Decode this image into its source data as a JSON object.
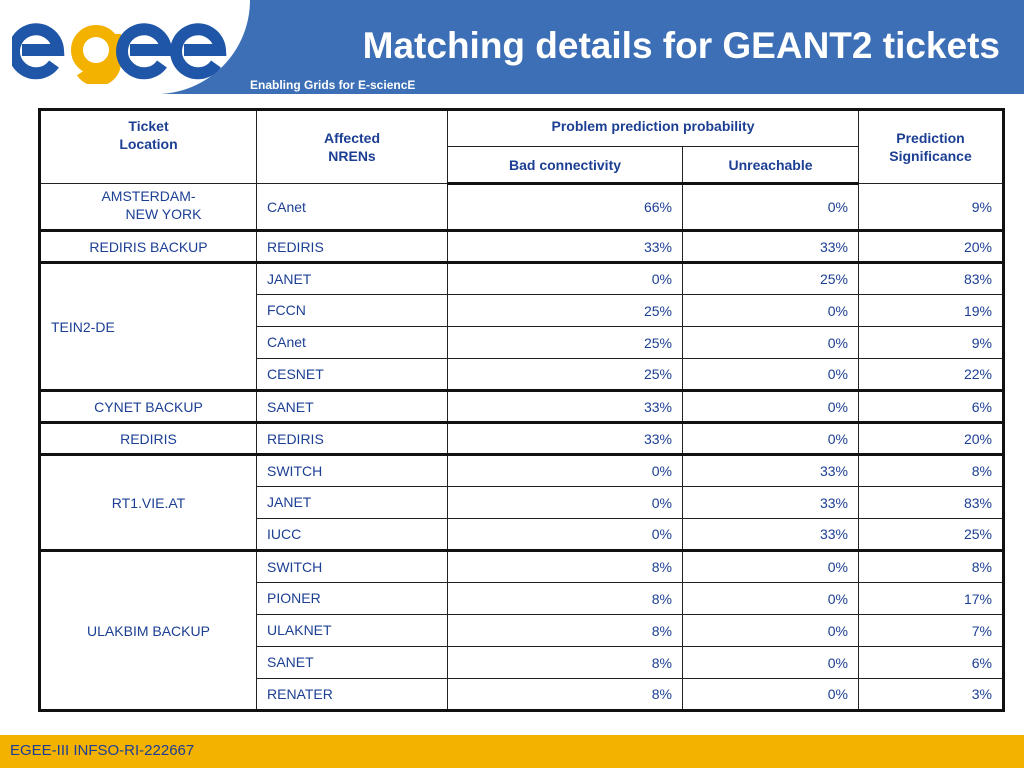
{
  "header": {
    "logo_text": "egee",
    "title": "Matching details for GEANT2 tickets",
    "tagline": "Enabling Grids for E-sciencE",
    "colors": {
      "band": "#3c6fb6",
      "logo_e": "#1f56a8",
      "logo_g": "#f3b100"
    }
  },
  "table": {
    "headers": {
      "ticket_location_1": "Ticket",
      "ticket_location_2": "Location",
      "affected_1": "Affected",
      "affected_2": "NRENs",
      "problem_prediction": "Problem prediction probability",
      "bad_connectivity": "Bad connectivity",
      "unreachable": "Unreachable",
      "significance_1": "Prediction",
      "significance_2": "Significance"
    },
    "groups": [
      {
        "location_line1": "AMSTERDAM-",
        "location_line2": "NEW YORK",
        "rows": [
          {
            "nren": "CAnet",
            "bad": "66%",
            "unreach": "0%",
            "sig": "9%"
          }
        ]
      },
      {
        "location": "REDIRIS BACKUP",
        "rows": [
          {
            "nren": "REDIRIS",
            "bad": "33%",
            "unreach": "33%",
            "sig": "20%"
          }
        ]
      },
      {
        "location": "TEIN2-DE",
        "rows": [
          {
            "nren": "JANET",
            "bad": "0%",
            "unreach": "25%",
            "sig": "83%"
          },
          {
            "nren": "FCCN",
            "bad": "25%",
            "unreach": "0%",
            "sig": "19%"
          },
          {
            "nren": "CAnet",
            "bad": "25%",
            "unreach": "0%",
            "sig": "9%"
          },
          {
            "nren": "CESNET",
            "bad": "25%",
            "unreach": "0%",
            "sig": "22%"
          }
        ]
      },
      {
        "location": "CYNET BACKUP",
        "rows": [
          {
            "nren": "SANET",
            "bad": "33%",
            "unreach": "0%",
            "sig": "6%"
          }
        ]
      },
      {
        "location": "REDIRIS",
        "rows": [
          {
            "nren": "REDIRIS",
            "bad": "33%",
            "unreach": "0%",
            "sig": "20%"
          }
        ]
      },
      {
        "location": "RT1.VIE.AT",
        "rows": [
          {
            "nren": "SWITCH",
            "bad": "0%",
            "unreach": "33%",
            "sig": "8%"
          },
          {
            "nren": "JANET",
            "bad": "0%",
            "unreach": "33%",
            "sig": "83%"
          },
          {
            "nren": "IUCC",
            "bad": "0%",
            "unreach": "33%",
            "sig": "25%"
          }
        ]
      },
      {
        "location": "ULAKBIM BACKUP",
        "rows": [
          {
            "nren": "SWITCH",
            "bad": "8%",
            "unreach": "0%",
            "sig": "8%"
          },
          {
            "nren": "PIONER",
            "bad": "8%",
            "unreach": "0%",
            "sig": "17%"
          },
          {
            "nren": "ULAKNET",
            "bad": "8%",
            "unreach": "0%",
            "sig": "7%"
          },
          {
            "nren": "SANET",
            "bad": "8%",
            "unreach": "0%",
            "sig": "6%"
          },
          {
            "nren": "RENATER",
            "bad": "8%",
            "unreach": "0%",
            "sig": "3%"
          }
        ]
      }
    ]
  },
  "footer": {
    "text": "EGEE-III INFSO-RI-222667",
    "color": "#f3b100"
  }
}
